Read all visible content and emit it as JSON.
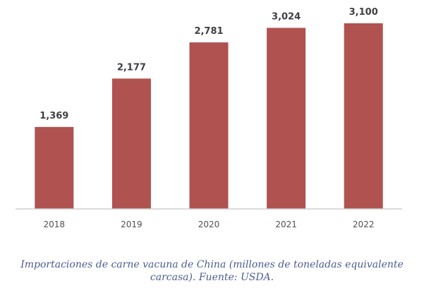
{
  "chart_data": {
    "type": "bar",
    "title": "",
    "xlabel": "",
    "ylabel": "",
    "categories": [
      "2018",
      "2019",
      "2020",
      "2021",
      "2022"
    ],
    "values": [
      1369,
      2177,
      2781,
      3024,
      3100
    ],
    "value_labels": [
      "1,369",
      "2,177",
      "2,781",
      "3,024",
      "3,100"
    ],
    "ylim": [
      0,
      3100
    ],
    "grid": false,
    "bar_color": "#b05250"
  },
  "caption": "Importaciones de carne vacuna de China (millones de toneladas equivalente carcasa). Fuente: USDA."
}
